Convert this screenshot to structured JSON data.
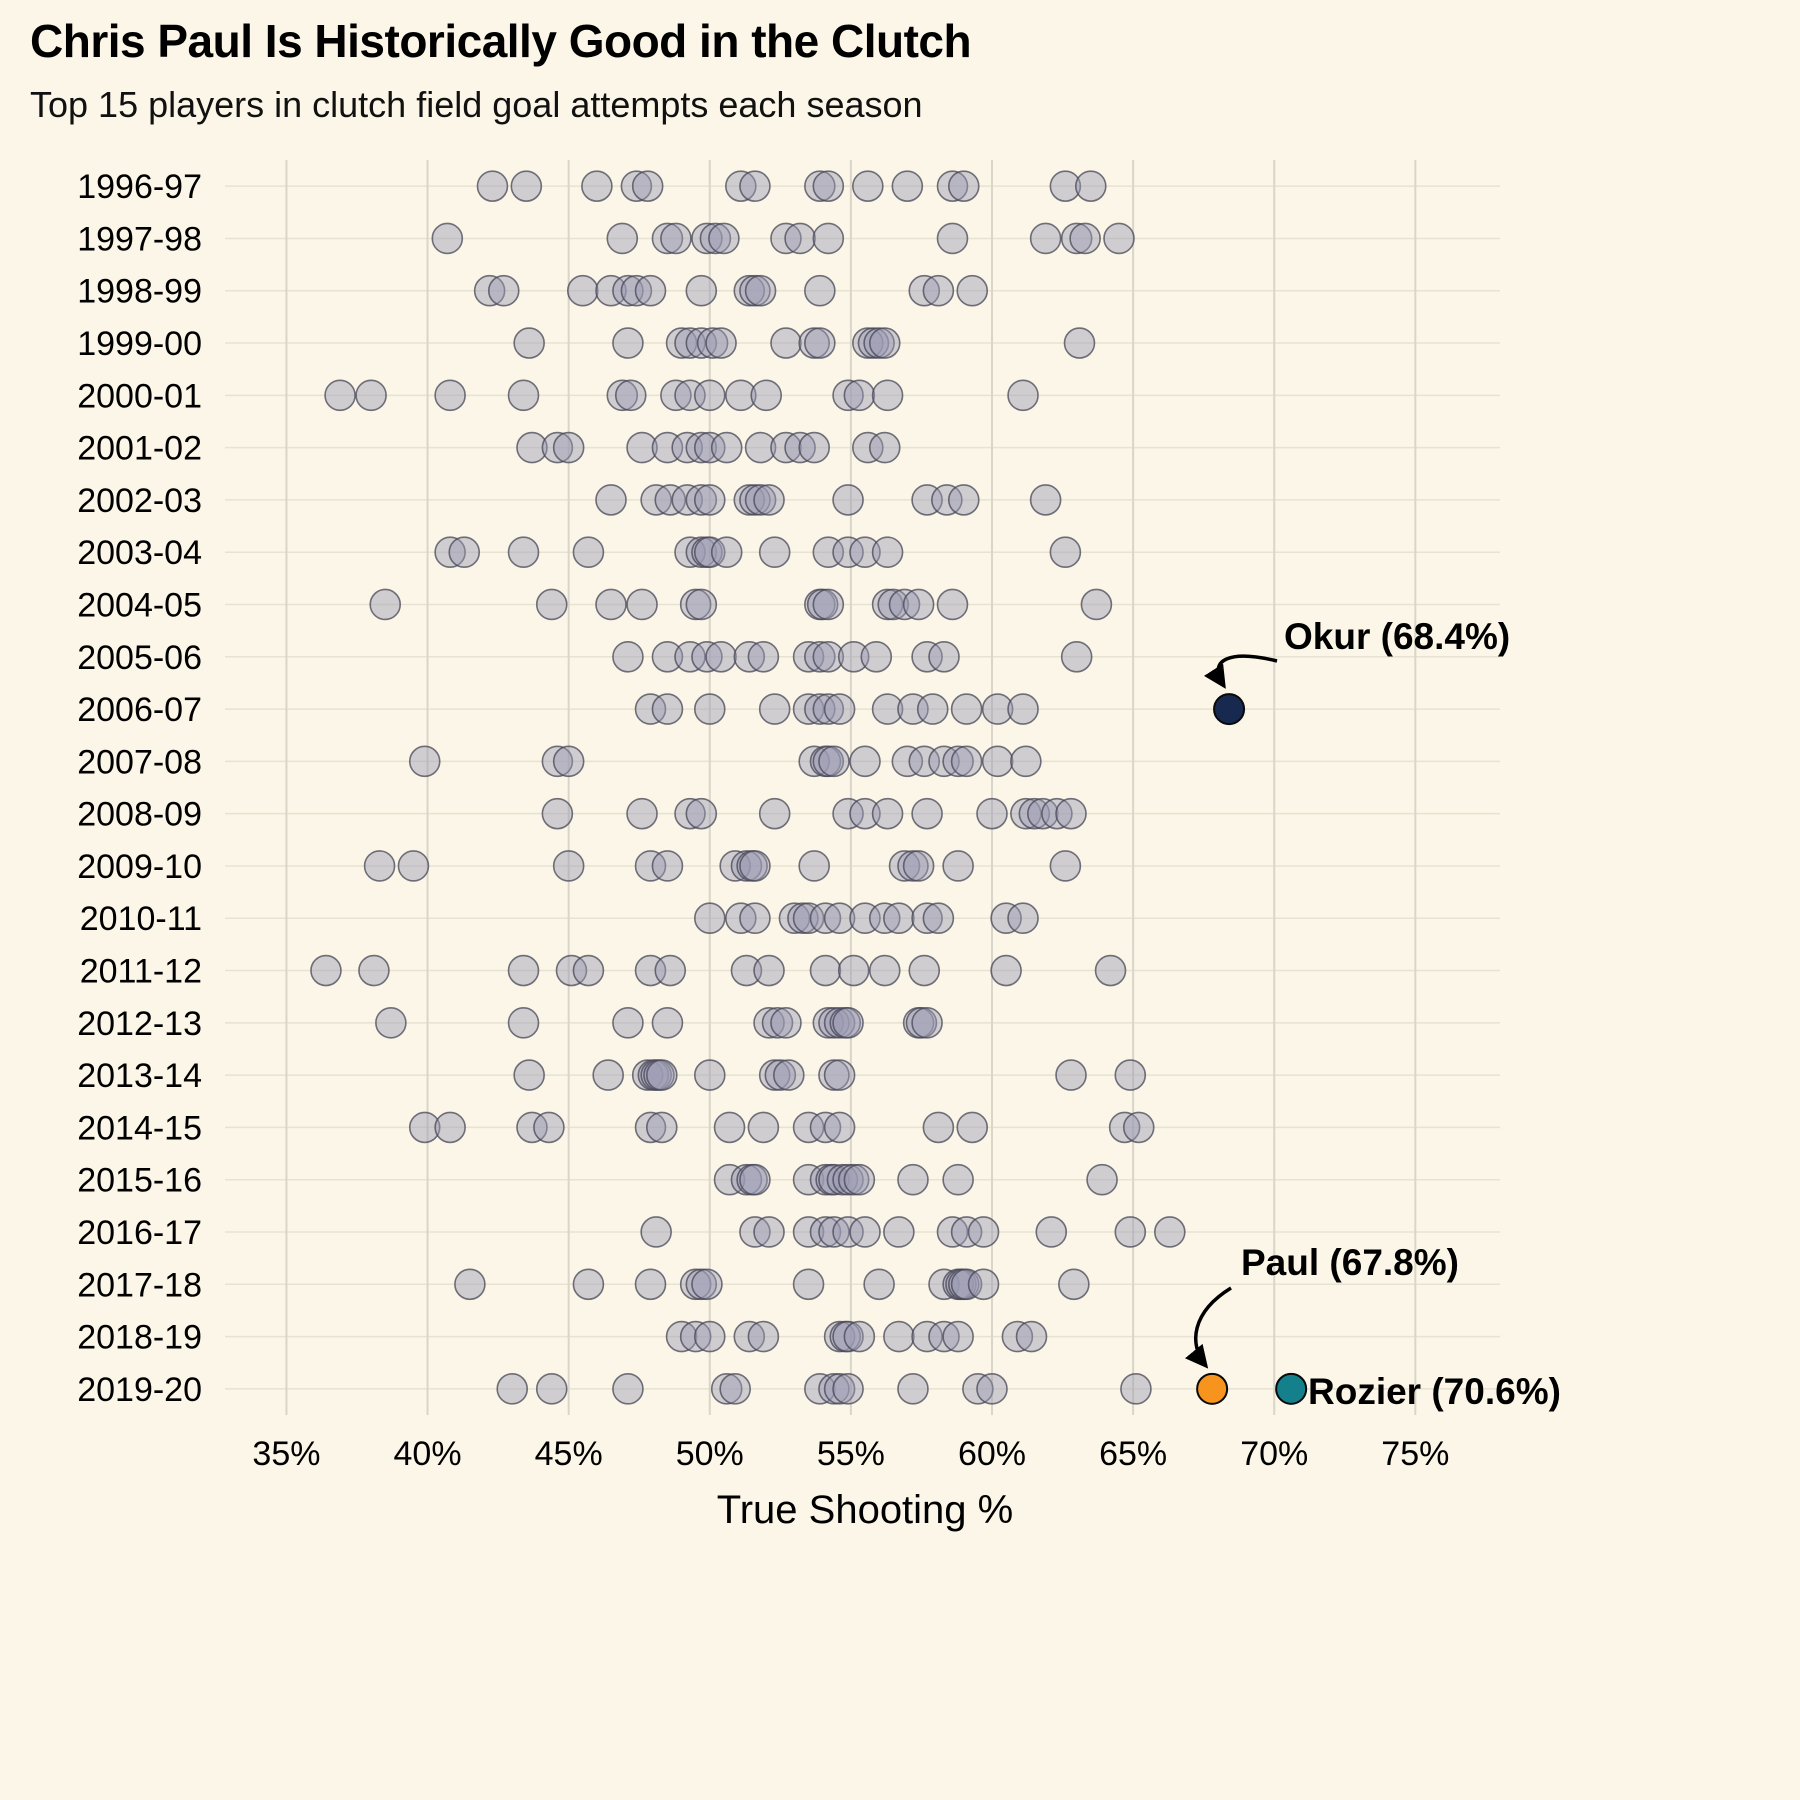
{
  "chart_data": {
    "type": "scatter",
    "title": "Chris Paul Is Historically Good in the Clutch",
    "subtitle": "Top 15 players in clutch field goal attempts each season",
    "xlabel": "True Shooting %",
    "x_range": [
      33,
      78
    ],
    "x_ticks": [
      35,
      40,
      45,
      50,
      55,
      60,
      65,
      70,
      75
    ],
    "x_tick_labels": [
      "35%",
      "40%",
      "45%",
      "50%",
      "55%",
      "60%",
      "65%",
      "70%",
      "75%"
    ],
    "grid": true,
    "legend": "none",
    "colors": {
      "background": "#fbf6e7",
      "grid_major": "#d9d5c8",
      "grid_minor": "#e7e2d2",
      "point_fill": "rgba(155,155,180,0.45)",
      "point_stroke": "rgba(70,70,85,0.75)",
      "okur": "#17294f",
      "paul": "#f7941d",
      "rozier": "#13808b"
    },
    "seasons": [
      {
        "label": "1996-97",
        "values": [
          42.3,
          43.5,
          46.0,
          47.4,
          47.8,
          51.1,
          51.6,
          53.9,
          54.2,
          55.6,
          57.0,
          58.6,
          59.0,
          62.6,
          63.5
        ]
      },
      {
        "label": "1997-98",
        "values": [
          40.7,
          46.9,
          48.5,
          48.8,
          49.9,
          50.2,
          50.5,
          52.7,
          53.2,
          54.2,
          58.6,
          61.9,
          63.0,
          63.3,
          64.5
        ]
      },
      {
        "label": "1998-99",
        "values": [
          42.2,
          42.7,
          45.5,
          46.5,
          47.1,
          47.4,
          47.9,
          49.7,
          51.4,
          51.6,
          51.8,
          53.9,
          57.6,
          58.1,
          59.3
        ]
      },
      {
        "label": "1999-00",
        "values": [
          43.6,
          47.1,
          49.0,
          49.3,
          49.7,
          50.1,
          50.4,
          52.7,
          53.7,
          53.9,
          55.6,
          55.8,
          56.0,
          56.2,
          63.1
        ]
      },
      {
        "label": "2000-01",
        "values": [
          36.9,
          38.0,
          40.8,
          43.4,
          46.9,
          47.2,
          48.8,
          49.3,
          50.0,
          51.1,
          52.0,
          54.9,
          55.3,
          56.3,
          61.1
        ]
      },
      {
        "label": "2001-02",
        "values": [
          43.7,
          44.6,
          45.0,
          47.6,
          48.5,
          49.2,
          49.7,
          50.0,
          50.6,
          51.8,
          52.7,
          53.2,
          53.7,
          55.6,
          56.2
        ]
      },
      {
        "label": "2002-03",
        "values": [
          46.5,
          48.1,
          48.6,
          49.2,
          49.7,
          50.0,
          51.4,
          51.6,
          51.8,
          52.1,
          54.9,
          57.7,
          58.4,
          59.0,
          61.9
        ]
      },
      {
        "label": "2003-04",
        "values": [
          40.8,
          41.3,
          43.4,
          45.7,
          49.3,
          49.7,
          49.9,
          50.0,
          50.6,
          52.3,
          54.2,
          54.9,
          55.5,
          56.3,
          62.6
        ]
      },
      {
        "label": "2004-05",
        "values": [
          38.5,
          44.4,
          46.5,
          47.6,
          49.5,
          49.7,
          53.9,
          54.0,
          54.2,
          56.3,
          56.5,
          56.9,
          57.4,
          58.6,
          63.7
        ]
      },
      {
        "label": "2005-06",
        "values": [
          47.1,
          48.5,
          49.3,
          49.9,
          50.4,
          51.4,
          51.9,
          53.5,
          53.9,
          54.2,
          55.1,
          55.9,
          57.7,
          58.3,
          63.0
        ]
      },
      {
        "label": "2006-07",
        "values": [
          47.9,
          48.5,
          50.0,
          52.3,
          53.5,
          53.9,
          54.2,
          54.6,
          56.3,
          57.2,
          57.9,
          59.1,
          60.2,
          61.1
        ]
      },
      {
        "label": "2007-08",
        "values": [
          39.9,
          44.6,
          45.0,
          53.7,
          54.1,
          54.2,
          54.4,
          55.5,
          57.0,
          57.6,
          58.3,
          58.8,
          59.1,
          60.2,
          61.2
        ]
      },
      {
        "label": "2008-09",
        "values": [
          44.6,
          47.6,
          49.3,
          49.7,
          52.3,
          54.9,
          55.5,
          56.3,
          57.7,
          60.0,
          61.2,
          61.5,
          61.8,
          62.3,
          62.8
        ]
      },
      {
        "label": "2009-10",
        "values": [
          38.3,
          39.5,
          45.0,
          47.9,
          48.5,
          50.9,
          51.3,
          51.5,
          51.6,
          53.7,
          56.9,
          57.2,
          57.4,
          58.8,
          62.6
        ]
      },
      {
        "label": "2010-11",
        "values": [
          50.0,
          51.1,
          51.6,
          53.0,
          53.3,
          53.5,
          54.1,
          54.6,
          55.5,
          56.2,
          56.7,
          57.7,
          58.1,
          60.5,
          61.1
        ]
      },
      {
        "label": "2011-12",
        "values": [
          36.4,
          38.1,
          43.4,
          45.1,
          45.7,
          47.9,
          48.6,
          51.3,
          52.1,
          54.1,
          55.1,
          56.2,
          57.6,
          60.5,
          64.2
        ]
      },
      {
        "label": "2012-13",
        "values": [
          38.7,
          43.4,
          47.1,
          48.5,
          52.1,
          52.4,
          52.7,
          54.2,
          54.4,
          54.6,
          54.8,
          54.9,
          57.4,
          57.5,
          57.7
        ]
      },
      {
        "label": "2013-14",
        "values": [
          43.6,
          46.4,
          47.8,
          48.0,
          48.1,
          48.2,
          48.3,
          50.0,
          52.3,
          52.5,
          52.8,
          54.4,
          54.6,
          62.8,
          64.9
        ]
      },
      {
        "label": "2014-15",
        "values": [
          39.9,
          40.8,
          43.7,
          44.3,
          47.9,
          48.3,
          50.7,
          51.9,
          53.5,
          54.1,
          54.6,
          58.1,
          59.3,
          64.7,
          65.2
        ]
      },
      {
        "label": "2015-16",
        "values": [
          50.7,
          51.3,
          51.5,
          51.6,
          53.5,
          54.1,
          54.3,
          54.4,
          54.7,
          54.9,
          55.1,
          55.3,
          57.2,
          58.8,
          63.9
        ]
      },
      {
        "label": "2016-17",
        "values": [
          48.1,
          51.6,
          52.1,
          53.5,
          54.1,
          54.4,
          54.9,
          55.5,
          56.7,
          58.6,
          59.1,
          59.7,
          62.1,
          64.9,
          66.3
        ]
      },
      {
        "label": "2017-18",
        "values": [
          41.5,
          45.7,
          47.9,
          49.5,
          49.7,
          49.9,
          53.5,
          56.0,
          58.3,
          58.8,
          58.9,
          59.0,
          59.1,
          59.7,
          62.9
        ]
      },
      {
        "label": "2018-19",
        "values": [
          49.0,
          49.5,
          50.0,
          51.4,
          51.9,
          54.6,
          54.8,
          54.9,
          55.3,
          56.7,
          57.7,
          58.3,
          58.8,
          60.9,
          61.4
        ]
      },
      {
        "label": "2019-20",
        "values": [
          43.0,
          44.4,
          47.1,
          50.6,
          50.9,
          53.9,
          54.4,
          54.6,
          54.9,
          57.2,
          59.5,
          60.0,
          65.1
        ]
      }
    ],
    "highlights": [
      {
        "name": "Okur",
        "label": "Okur (68.4%)",
        "season": "2006-07",
        "value": 68.4,
        "color_key": "okur"
      },
      {
        "name": "Paul",
        "label": "Paul (67.8%)",
        "season": "2019-20",
        "value": 67.8,
        "color_key": "paul"
      },
      {
        "name": "Rozier",
        "label": "Rozier (70.6%)",
        "season": "2019-20",
        "value": 70.6,
        "color_key": "rozier"
      }
    ]
  }
}
